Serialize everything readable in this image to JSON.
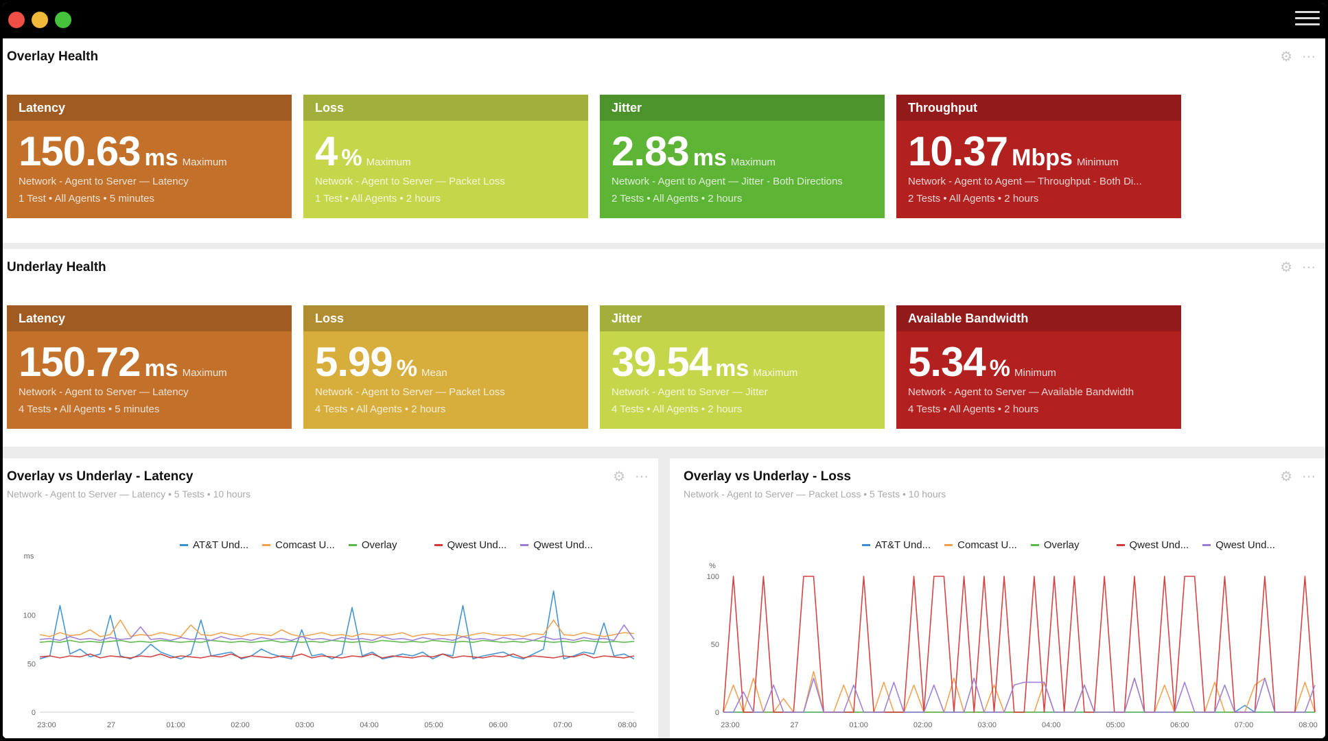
{
  "overlay": {
    "title": "Overlay Health",
    "tiles": [
      {
        "name": "Latency",
        "value": "150.63",
        "unit": "ms",
        "agg": "Maximum",
        "desc": "Network - Agent to Server — Latency",
        "meta": "1 Test • All Agents • 5 minutes",
        "color": "#c2702a"
      },
      {
        "name": "Loss",
        "value": "4",
        "unit": "%",
        "agg": "Maximum",
        "desc": "Network - Agent to Server — Packet Loss",
        "meta": "1 Test • All Agents • 2 hours",
        "color": "#c6d64a"
      },
      {
        "name": "Jitter",
        "value": "2.83",
        "unit": "ms",
        "agg": "Maximum",
        "desc": "Network - Agent to Agent — Jitter - Both Directions",
        "meta": "2 Tests • All Agents • 2 hours",
        "color": "#5eb435"
      },
      {
        "name": "Throughput",
        "value": "10.37",
        "unit": "Mbps",
        "agg": "Minimum",
        "desc": "Network - Agent to Agent — Throughput - Both Di...",
        "meta": "2 Tests • All Agents • 2 hours",
        "color": "#b32020"
      }
    ]
  },
  "underlay": {
    "title": "Underlay Health",
    "tiles": [
      {
        "name": "Latency",
        "value": "150.72",
        "unit": "ms",
        "agg": "Maximum",
        "desc": "Network - Agent to Server — Latency",
        "meta": "4 Tests • All Agents • 5 minutes",
        "color": "#c2702a"
      },
      {
        "name": "Loss",
        "value": "5.99",
        "unit": "%",
        "agg": "Mean",
        "desc": "Network - Agent to Server — Packet Loss",
        "meta": "4 Tests • All Agents • 2 hours",
        "color": "#d7ad3c"
      },
      {
        "name": "Jitter",
        "value": "39.54",
        "unit": "ms",
        "agg": "Maximum",
        "desc": "Network - Agent to Server — Jitter",
        "meta": "4 Tests • All Agents • 2 hours",
        "color": "#c6d64a"
      },
      {
        "name": "Available Bandwidth",
        "value": "5.34",
        "unit": "%",
        "agg": "Minimum",
        "desc": "Network - Agent to Server — Available Bandwidth",
        "meta": "4 Tests • All Agents • 2 hours",
        "color": "#b32020"
      }
    ]
  },
  "latency_chart": {
    "title": "Overlay vs Underlay - Latency",
    "subtitle": "Network - Agent to Server — Latency • 5 Tests • 10 hours"
  },
  "loss_chart": {
    "title": "Overlay vs Underlay - Loss",
    "subtitle": "Network - Agent to Server — Packet Loss • 5 Tests • 10 hours"
  },
  "legend": [
    {
      "label": "AT&T Und...",
      "color": "#3b8fd1"
    },
    {
      "label": "Comcast U...",
      "color": "#f0a04a"
    },
    {
      "label": "Overlay",
      "color": "#5bb94a"
    },
    {
      "label": "Qwest Und...",
      "color": "#d23a3a"
    },
    {
      "label": "Qwest Und...",
      "color": "#9a7bd6"
    }
  ],
  "icons": {
    "gear": "gear-icon",
    "more": "more-icon",
    "menu": "hamburger-menu-icon"
  },
  "chart_data": [
    {
      "type": "line",
      "title": "Overlay vs Underlay - Latency",
      "ylabel": "ms",
      "ylim": [
        0,
        150
      ],
      "yticks": [
        0,
        50,
        100
      ],
      "xticks": [
        "23:00",
        "27",
        "01:00",
        "02:00",
        "03:00",
        "04:00",
        "05:00",
        "06:00",
        "07:00",
        "08:00"
      ],
      "x": [
        0,
        1,
        2,
        3,
        4,
        5,
        6,
        7,
        8,
        9,
        10,
        11,
        12,
        13,
        14,
        15,
        16,
        17,
        18,
        19,
        20,
        21,
        22,
        23,
        24,
        25,
        26,
        27,
        28,
        29,
        30,
        31,
        32,
        33,
        34,
        35,
        36,
        37,
        38,
        39,
        40,
        41,
        42,
        43,
        44,
        45,
        46,
        47,
        48,
        49,
        50,
        51,
        52,
        53,
        54,
        55,
        56,
        57,
        58,
        59
      ],
      "series": [
        {
          "name": "AT&T Und...",
          "color": "#3b8fd1",
          "values": [
            55,
            58,
            110,
            60,
            65,
            57,
            60,
            100,
            58,
            55,
            60,
            70,
            62,
            58,
            55,
            60,
            95,
            58,
            60,
            62,
            55,
            58,
            65,
            60,
            57,
            55,
            85,
            58,
            60,
            55,
            60,
            108,
            58,
            62,
            55,
            57,
            60,
            58,
            62,
            55,
            60,
            58,
            110,
            55,
            58,
            60,
            62,
            57,
            55,
            60,
            65,
            125,
            55,
            58,
            62,
            60,
            92,
            58,
            60,
            55
          ]
        },
        {
          "name": "Comcast U...",
          "color": "#f0a04a",
          "values": [
            80,
            78,
            82,
            79,
            80,
            85,
            78,
            80,
            95,
            78,
            80,
            79,
            82,
            80,
            78,
            90,
            80,
            79,
            82,
            80,
            78,
            81,
            80,
            79,
            85,
            80,
            78,
            80,
            82,
            79,
            80,
            78,
            81,
            80,
            79,
            80,
            82,
            78,
            80,
            81,
            79,
            80,
            78,
            80,
            82,
            80,
            79,
            80,
            78,
            81,
            80,
            95,
            80,
            79,
            82,
            80,
            78,
            80,
            82,
            81
          ]
        },
        {
          "name": "Overlay",
          "color": "#5bb94a",
          "values": [
            72,
            73,
            72,
            74,
            72,
            73,
            72,
            73,
            74,
            72,
            73,
            72,
            74,
            73,
            72,
            73,
            72,
            74,
            73,
            72,
            73,
            72,
            73,
            74,
            72,
            73,
            72,
            73,
            72,
            74,
            73,
            72,
            73,
            72,
            74,
            73,
            72,
            73,
            72,
            74,
            73,
            72,
            73,
            72,
            74,
            73,
            72,
            73,
            72,
            74,
            73,
            72,
            73,
            72,
            74,
            73,
            72,
            73,
            72,
            73
          ]
        },
        {
          "name": "Qwest Und...",
          "color": "#d23a3a",
          "values": [
            57,
            58,
            56,
            58,
            57,
            60,
            56,
            58,
            57,
            56,
            58,
            57,
            60,
            56,
            58,
            57,
            56,
            58,
            57,
            60,
            56,
            58,
            57,
            56,
            58,
            57,
            60,
            56,
            58,
            57,
            56,
            58,
            57,
            60,
            56,
            58,
            57,
            56,
            58,
            57,
            60,
            56,
            58,
            57,
            56,
            58,
            57,
            60,
            56,
            58,
            57,
            56,
            58,
            57,
            60,
            56,
            58,
            57,
            56,
            58
          ]
        },
        {
          "name": "Qwest Und...",
          "color": "#9a7bd6",
          "values": [
            75,
            76,
            74,
            78,
            75,
            76,
            74,
            77,
            75,
            76,
            88,
            75,
            76,
            74,
            77,
            75,
            76,
            74,
            78,
            75,
            76,
            74,
            77,
            75,
            76,
            74,
            78,
            75,
            76,
            74,
            77,
            75,
            76,
            74,
            78,
            75,
            76,
            74,
            77,
            75,
            76,
            74,
            78,
            75,
            76,
            74,
            77,
            75,
            76,
            74,
            78,
            75,
            76,
            74,
            77,
            75,
            76,
            74,
            90,
            75
          ]
        }
      ]
    },
    {
      "type": "line",
      "title": "Overlay vs Underlay - Loss",
      "ylabel": "%",
      "ylim": [
        0,
        100
      ],
      "yticks": [
        0,
        50,
        100
      ],
      "xticks": [
        "23:00",
        "27",
        "01:00",
        "02:00",
        "03:00",
        "04:00",
        "05:00",
        "06:00",
        "07:00",
        "08:00"
      ],
      "x": [
        0,
        1,
        2,
        3,
        4,
        5,
        6,
        7,
        8,
        9,
        10,
        11,
        12,
        13,
        14,
        15,
        16,
        17,
        18,
        19,
        20,
        21,
        22,
        23,
        24,
        25,
        26,
        27,
        28,
        29,
        30,
        31,
        32,
        33,
        34,
        35,
        36,
        37,
        38,
        39,
        40,
        41,
        42,
        43,
        44,
        45,
        46,
        47,
        48,
        49,
        50,
        51,
        52,
        53,
        54,
        55,
        56,
        57,
        58,
        59
      ],
      "series": [
        {
          "name": "AT&T Und...",
          "color": "#3b8fd1",
          "values": [
            0,
            0,
            0,
            0,
            0,
            0,
            0,
            0,
            0,
            0,
            0,
            0,
            0,
            0,
            0,
            0,
            0,
            0,
            0,
            0,
            0,
            0,
            0,
            0,
            0,
            0,
            0,
            0,
            0,
            0,
            0,
            0,
            0,
            0,
            0,
            0,
            0,
            0,
            0,
            0,
            0,
            0,
            0,
            0,
            0,
            0,
            0,
            0,
            0,
            0,
            0,
            0,
            5,
            0,
            0,
            0,
            0,
            0,
            0,
            0
          ]
        },
        {
          "name": "Comcast U...",
          "color": "#f0a04a",
          "values": [
            0,
            20,
            0,
            25,
            0,
            0,
            10,
            0,
            0,
            30,
            0,
            0,
            20,
            0,
            0,
            0,
            22,
            0,
            0,
            20,
            0,
            0,
            0,
            25,
            0,
            0,
            0,
            20,
            0,
            0,
            0,
            0,
            22,
            0,
            0,
            0,
            20,
            0,
            0,
            0,
            0,
            25,
            0,
            0,
            20,
            0,
            0,
            0,
            0,
            22,
            0,
            0,
            0,
            20,
            25,
            0,
            0,
            0,
            22,
            0
          ]
        },
        {
          "name": "Overlay",
          "color": "#5bb94a",
          "values": [
            0,
            0,
            0,
            0,
            0,
            0,
            0,
            0,
            0,
            0,
            0,
            0,
            0,
            0,
            0,
            0,
            0,
            0,
            0,
            0,
            0,
            0,
            0,
            0,
            0,
            0,
            0,
            0,
            0,
            0,
            0,
            0,
            0,
            0,
            0,
            0,
            0,
            0,
            0,
            0,
            0,
            0,
            0,
            0,
            0,
            0,
            0,
            0,
            0,
            0,
            0,
            0,
            0,
            0,
            0,
            0,
            0,
            0,
            0,
            0
          ]
        },
        {
          "name": "Qwest Und...",
          "color": "#d23a3a",
          "values": [
            0,
            100,
            0,
            0,
            100,
            0,
            0,
            0,
            100,
            100,
            0,
            0,
            0,
            0,
            100,
            0,
            0,
            0,
            0,
            100,
            0,
            100,
            100,
            0,
            100,
            0,
            100,
            0,
            100,
            0,
            0,
            100,
            0,
            100,
            0,
            100,
            0,
            0,
            100,
            0,
            0,
            100,
            0,
            0,
            100,
            0,
            100,
            100,
            0,
            0,
            100,
            0,
            0,
            0,
            100,
            0,
            0,
            0,
            100,
            0
          ]
        },
        {
          "name": "Qwest Und...",
          "color": "#9a7bd6",
          "values": [
            0,
            0,
            15,
            0,
            0,
            20,
            0,
            0,
            0,
            25,
            0,
            0,
            0,
            20,
            0,
            0,
            0,
            22,
            0,
            0,
            0,
            20,
            0,
            0,
            0,
            25,
            0,
            0,
            0,
            20,
            22,
            22,
            22,
            0,
            0,
            0,
            20,
            0,
            0,
            0,
            0,
            25,
            0,
            0,
            0,
            0,
            22,
            0,
            0,
            0,
            20,
            0,
            0,
            0,
            25,
            0,
            0,
            0,
            0,
            20
          ]
        }
      ]
    }
  ]
}
